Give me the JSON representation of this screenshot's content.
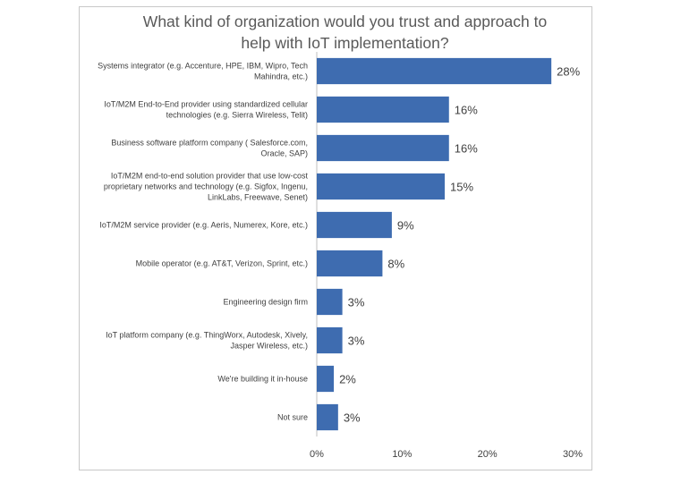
{
  "chart_data": {
    "type": "bar",
    "orientation": "horizontal",
    "title": "What kind of organization would you trust and approach to help with IoT implementation?",
    "title_lines": [
      "What kind of organization would you trust and approach to",
      "help with IoT implementation?"
    ],
    "categories": [
      [
        "Systems integrator (e.g. Accenture, HPE, IBM, Wipro, Tech",
        "Mahindra, etc.)"
      ],
      [
        "IoT/M2M End-to-End provider using standardized cellular",
        "technologies (e.g. Sierra Wireless, Telit)"
      ],
      [
        "Business software platform company ( Salesforce.com,",
        "Oracle, SAP)"
      ],
      [
        "IoT/M2M end-to-end solution provider that use low-cost",
        "proprietary networks and technology (e.g. Sigfox, Ingenu,",
        "LinkLabs, Freewave, Senet)"
      ],
      [
        "IoT/M2M service provider (e.g. Aeris, Numerex, Kore, etc.)"
      ],
      [
        "Mobile operator (e.g. AT&T, Verizon, Sprint, etc.)"
      ],
      [
        "Engineering design firm"
      ],
      [
        "IoT platform company (e.g. ThingWorx, Autodesk, Xively,",
        "Jasper Wireless, etc.)"
      ],
      [
        "We're building it in-house"
      ],
      [
        "Not sure"
      ]
    ],
    "values": [
      27.5,
      15.5,
      15.5,
      15,
      8.8,
      7.7,
      3,
      3,
      2,
      2.5
    ],
    "data_labels": [
      "28%",
      "16%",
      "16%",
      "15%",
      "9%",
      "8%",
      "3%",
      "3%",
      "2%",
      "3%"
    ],
    "xlim": [
      0,
      30
    ],
    "xticks": [
      0,
      10,
      20,
      30
    ],
    "xtick_labels": [
      "0%",
      "10%",
      "20%",
      "30%"
    ],
    "bar_color": "#3e6cb0",
    "xlabel": "",
    "ylabel": ""
  }
}
